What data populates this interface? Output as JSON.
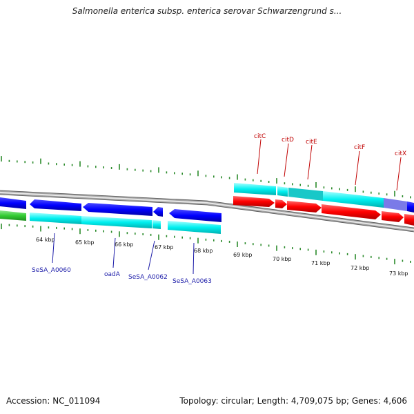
{
  "title": "Salmonella enterica subsp. enterica serovar Schwarzengrund s...",
  "footer": {
    "accession": "Accession: NC_011094",
    "summary": "Topology: circular; Length: 4,709,075 bp; Genes: 4,606"
  },
  "ticks": [
    "64 kbp",
    "65 kbp",
    "66 kbp",
    "67 kbp",
    "68 kbp",
    "69 kbp",
    "70 kbp",
    "71 kbp",
    "72 kbp",
    "73 kbp"
  ],
  "genes_top": [
    "citC",
    "citD",
    "citE",
    "citF",
    "citX"
  ],
  "genes_bottom": [
    "SeSA_A0060",
    "oadA",
    "SeSA_A0062",
    "SeSA_A0063"
  ],
  "colors": {
    "forward_cds": "#ff0000",
    "reverse_cds": "#0000ff",
    "feature_light": "#00ffff",
    "feature_green": "#33cc33",
    "ticks": "#2a8a2a",
    "backbone": "#808080"
  }
}
